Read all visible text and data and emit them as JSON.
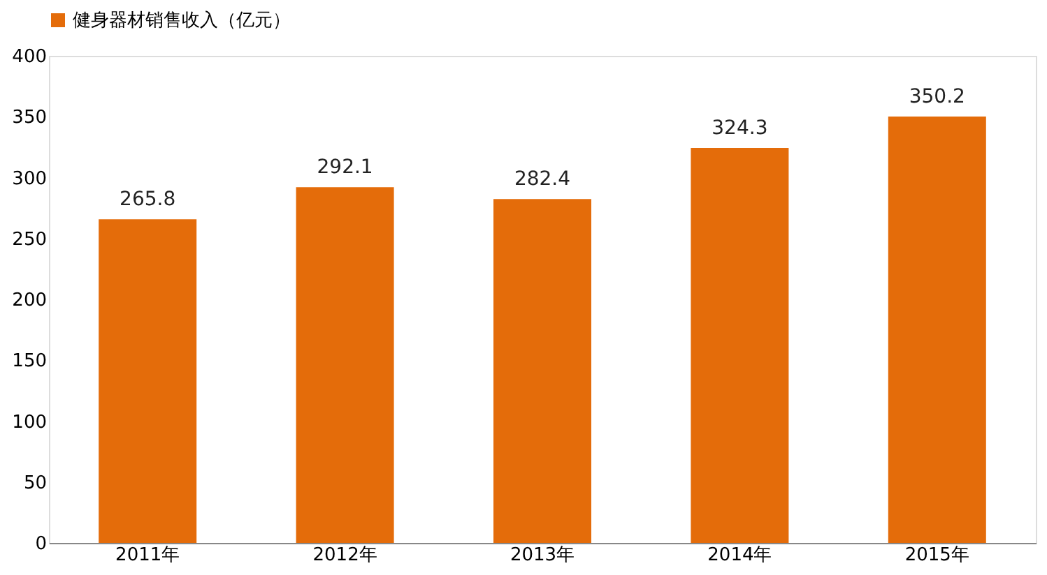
{
  "chart_data": {
    "type": "bar",
    "categories": [
      "2011年",
      "2012年",
      "2013年",
      "2014年",
      "2015年"
    ],
    "series": [
      {
        "name": "健身器材销售收入（亿元）",
        "color": "#e46c0a",
        "values": [
          265.8,
          292.1,
          282.4,
          324.3,
          350.2
        ]
      }
    ],
    "ylim": [
      0,
      400
    ],
    "yticks": [
      0,
      50,
      100,
      150,
      200,
      250,
      300,
      350,
      400
    ],
    "data_labels": true,
    "grid": false,
    "legend": "top"
  }
}
